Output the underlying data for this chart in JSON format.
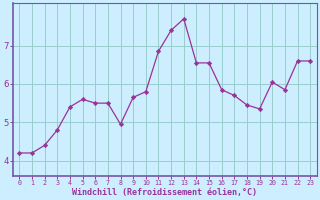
{
  "x": [
    0,
    1,
    2,
    3,
    4,
    5,
    6,
    7,
    8,
    9,
    10,
    11,
    12,
    13,
    14,
    15,
    16,
    17,
    18,
    19,
    20,
    21,
    22,
    23
  ],
  "y": [
    4.2,
    4.2,
    4.4,
    4.8,
    5.4,
    5.6,
    5.5,
    5.5,
    4.95,
    5.65,
    5.8,
    6.85,
    7.4,
    7.7,
    6.55,
    6.55,
    5.85,
    5.7,
    5.45,
    5.35,
    6.05,
    5.85,
    6.6,
    6.6
  ],
  "line_color": "#993399",
  "marker": "D",
  "marker_size": 2.2,
  "bg_color": "#cceeff",
  "grid_color": "#99cccc",
  "xlabel": "Windchill (Refroidissement éolien,°C)",
  "xlabel_color": "#993399",
  "tick_color": "#993399",
  "axis_color": "#7755aa",
  "ylim_min": 3.6,
  "ylim_max": 8.1,
  "yticks": [
    4,
    5,
    6,
    7
  ],
  "xlim_min": -0.5,
  "xlim_max": 23.5,
  "xticks": [
    0,
    1,
    2,
    3,
    4,
    5,
    6,
    7,
    8,
    9,
    10,
    11,
    12,
    13,
    14,
    15,
    16,
    17,
    18,
    19,
    20,
    21,
    22,
    23
  ]
}
